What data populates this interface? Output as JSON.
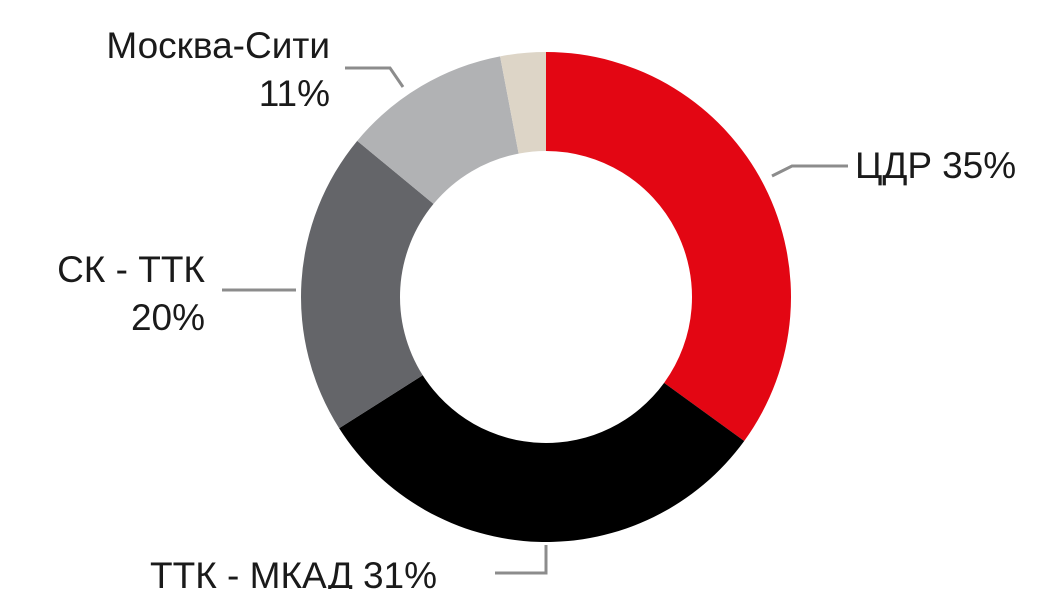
{
  "chart_data": {
    "type": "donut",
    "categories": [
      "ЦДР",
      "ТТК - МКАД",
      "СК - ТТК",
      "Москва-Сити",
      null
    ],
    "values": [
      35,
      31,
      20,
      11,
      3
    ],
    "value_labels": [
      "35%",
      "31%",
      "20%",
      "11%",
      null
    ],
    "colors": [
      "#e30613",
      "#000000",
      "#646569",
      "#b1b2b4",
      "#ddd5c7"
    ]
  }
}
